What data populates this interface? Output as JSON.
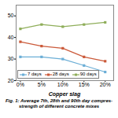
{
  "chart_data": {
    "type": "line",
    "x": [
      0,
      5,
      10,
      15,
      20
    ],
    "series": [
      {
        "name": "7 days",
        "color": "#6baed6",
        "marker": "square",
        "values": [
          31,
          31,
          30,
          27,
          24
        ]
      },
      {
        "name": "28 days",
        "color": "#cb5a3a",
        "marker": "square",
        "values": [
          38,
          36,
          35,
          31,
          29
        ]
      },
      {
        "name": "90 days",
        "color": "#8fae5a",
        "marker": "square",
        "values": [
          44,
          46,
          45,
          46,
          47
        ]
      }
    ],
    "xlabel": "Copper slag",
    "caption": "Fig. 1: Average 7th, 28th and 90th day compres-\nstrength of different concrete mixes",
    "xlim": [
      -1,
      22
    ],
    "xticks": [
      {
        "value": 0,
        "label": "0%"
      },
      {
        "value": 5,
        "label": "5%"
      },
      {
        "value": 10,
        "label": "10%"
      },
      {
        "value": 15,
        "label": "15%"
      },
      {
        "value": 20,
        "label": "20%"
      }
    ],
    "ylim": [
      20,
      55
    ],
    "yticks": [
      20,
      30,
      40,
      50
    ],
    "legend": "lower left"
  }
}
